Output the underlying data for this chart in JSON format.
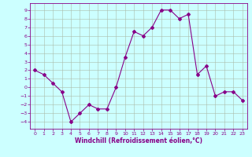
{
  "x": [
    0,
    1,
    2,
    3,
    4,
    5,
    6,
    7,
    8,
    9,
    10,
    11,
    12,
    13,
    14,
    15,
    16,
    17,
    18,
    19,
    20,
    21,
    22,
    23
  ],
  "y": [
    2,
    1.5,
    0.5,
    -0.5,
    -4,
    -3,
    -2,
    -2.5,
    -2.5,
    0,
    3.5,
    6.5,
    6,
    7,
    9,
    9,
    8,
    8.5,
    1.5,
    2.5,
    -1,
    -0.5,
    -0.5,
    -1.5
  ],
  "xlim": [
    -0.5,
    23.5
  ],
  "ylim": [
    -4.8,
    9.8
  ],
  "yticks": [
    -4,
    -3,
    -2,
    -1,
    0,
    1,
    2,
    3,
    4,
    5,
    6,
    7,
    8,
    9
  ],
  "xticks": [
    0,
    1,
    2,
    3,
    4,
    5,
    6,
    7,
    8,
    9,
    10,
    11,
    12,
    13,
    14,
    15,
    16,
    17,
    18,
    19,
    20,
    21,
    22,
    23
  ],
  "xlabel": "Windchill (Refroidissement éolien,°C)",
  "line_color": "#880088",
  "marker": "D",
  "marker_size": 2,
  "bg_color": "#ccffff",
  "grid_color": "#aabbaa",
  "spine_color": "#880088"
}
